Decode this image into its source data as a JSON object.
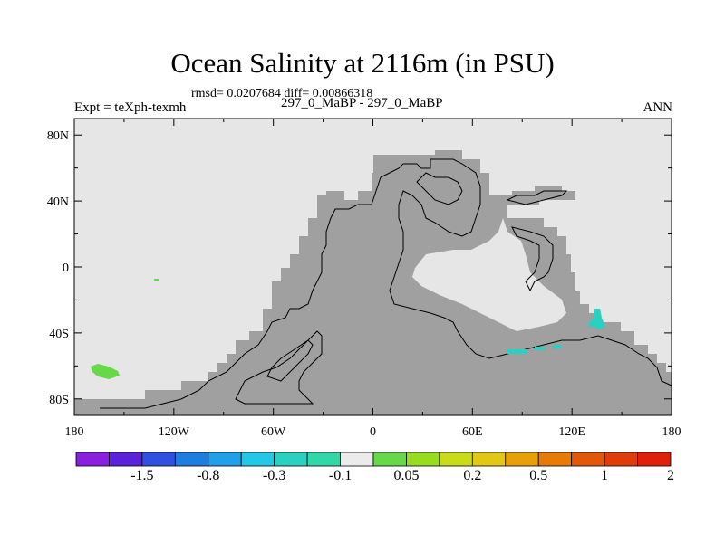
{
  "title": "Ocean Salinity at 2116m (in PSU)",
  "stats": "rmsd= 0.0207684 diff= 0.00866318",
  "subtitle_left": "Expt = teXph-texmh",
  "subtitle_center": "297_0_MaBP - 297_0_MaBP",
  "subtitle_right": "ANN",
  "map": {
    "ocean_color": "#e6e6e6",
    "land_color": "#a0a0a0",
    "lat_ticks": [
      "80N",
      "40N",
      "0",
      "40S",
      "80S"
    ],
    "lon_ticks": [
      "180",
      "120W",
      "60W",
      "0",
      "60E",
      "120E",
      "180"
    ]
  },
  "colorbar": {
    "colors": [
      "#8a1fe0",
      "#5a22d8",
      "#3050e0",
      "#1e7ee0",
      "#1fa0e8",
      "#22c8e6",
      "#2ad0c0",
      "#30d8a8",
      "#ebebeb",
      "#66d84a",
      "#98dc20",
      "#c8dc1a",
      "#e0c814",
      "#e8a00a",
      "#e87a06",
      "#e05808",
      "#e03c0a",
      "#e0200a"
    ],
    "labels": [
      "-1.5",
      "-0.8",
      "-0.3",
      "-0.1",
      "0.05",
      "0.2",
      "0.5",
      "1",
      "2"
    ]
  }
}
